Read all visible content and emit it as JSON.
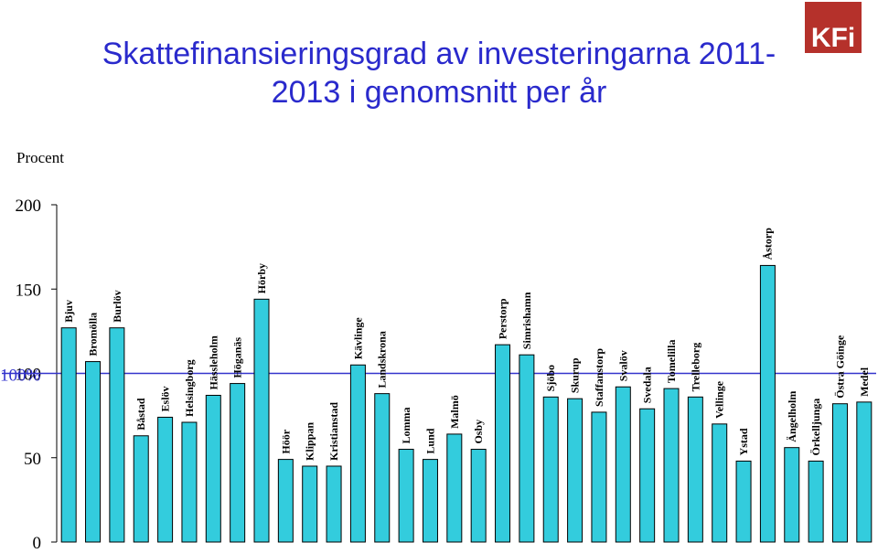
{
  "chart_data": {
    "type": "bar",
    "title": "Skattefinansieringsgrad av investeringarna 2011-2013 i genomsnitt per år",
    "logo": "KFi",
    "y_label": "Procent",
    "categories": [
      "Bjuv",
      "Bromölla",
      "Burlöv",
      "Båstad",
      "Eslöv",
      "Helsingborg",
      "Hässleholm",
      "Höganäs",
      "Hörby",
      "Höör",
      "Klippan",
      "Kristianstad",
      "Kävlinge",
      "Landskrona",
      "Lomma",
      "Lund",
      "Malmö",
      "Osby",
      "Perstorp",
      "Simrishamn",
      "Sjöbo",
      "Skurup",
      "Staffanstorp",
      "Svalöv",
      "Svedala",
      "Tomelilla",
      "Trelleborg",
      "Vellinge",
      "Ystad",
      "Åstorp",
      "Ängelholm",
      "Örkelljunga",
      "Östra Göinge",
      "Medel"
    ],
    "values": [
      127,
      107,
      127,
      63,
      74,
      71,
      87,
      94,
      144,
      49,
      45,
      45,
      105,
      88,
      55,
      49,
      64,
      55,
      117,
      111,
      86,
      85,
      77,
      92,
      79,
      91,
      86,
      70,
      48,
      164,
      56,
      48,
      82,
      83
    ],
    "color": "#33ccdd",
    "ylim": [
      0,
      200
    ],
    "yticks": [
      0,
      50,
      100,
      150,
      200
    ],
    "reference_line": {
      "value": 100,
      "label": "100%",
      "color": "#3333cc"
    }
  }
}
